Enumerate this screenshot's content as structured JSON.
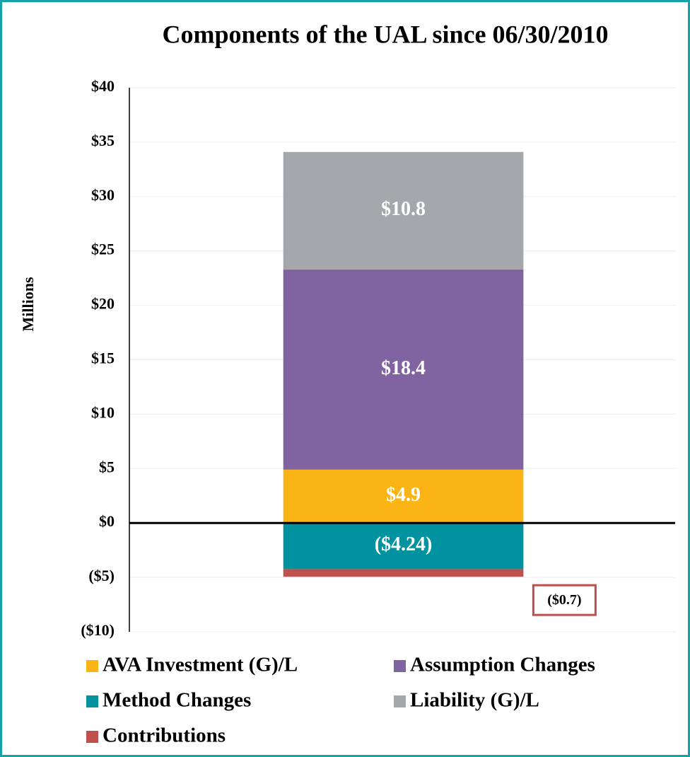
{
  "chart_data": {
    "type": "stacked_bar",
    "title": "Components of the UAL since 06/30/2010",
    "y_label": "Millions",
    "categories": [
      null
    ],
    "series": [
      {
        "name": "AVA Investment (G)/L",
        "color": "#fbb416",
        "values": [
          4.9
        ],
        "value_labels": [
          "$4.9"
        ]
      },
      {
        "name": "Assumption Changes",
        "color": "#8064a2",
        "values": [
          18.4
        ],
        "value_labels": [
          "$18.4"
        ]
      },
      {
        "name": "Method Changes",
        "color": "#00929f",
        "values": [
          -4.24
        ],
        "value_labels": [
          "($4.24)"
        ]
      },
      {
        "name": "Liability (G)/L",
        "color": "#a5a8ab",
        "values": [
          10.8
        ],
        "value_labels": [
          "$10.8"
        ]
      },
      {
        "name": "Contributions",
        "color": "#c0504d",
        "values": [
          -0.7
        ],
        "value_labels": [
          "($0.7)"
        ]
      }
    ],
    "ylim": [
      -10,
      40
    ],
    "yticks": [
      {
        "value": -10,
        "label": "($10)"
      },
      {
        "value": -5,
        "label": "($5)"
      },
      {
        "value": 0,
        "label": "$0"
      },
      {
        "value": 5,
        "label": "$5"
      },
      {
        "value": 10,
        "label": "$10"
      },
      {
        "value": 15,
        "label": "$15"
      },
      {
        "value": 20,
        "label": "$20"
      },
      {
        "value": 25,
        "label": "$25"
      },
      {
        "value": 30,
        "label": "$30"
      },
      {
        "value": 35,
        "label": "$35"
      },
      {
        "value": 40,
        "label": "$40"
      }
    ],
    "grid": true,
    "legend_position": "bottom"
  }
}
